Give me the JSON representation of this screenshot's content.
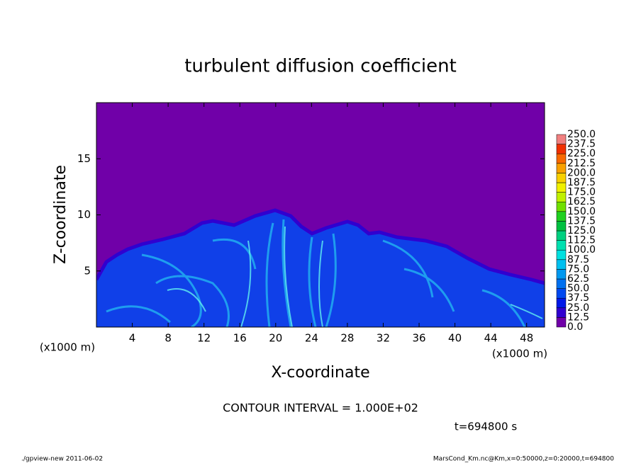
{
  "chart_data": {
    "type": "contour",
    "title": "turbulent diffusion coefficient",
    "xlabel": "X-coordinate",
    "ylabel": "Z-coordinate",
    "xunit": "(x1000 m)",
    "yunit": "(x1000 m)",
    "xlim": [
      0,
      50
    ],
    "ylim": [
      0,
      20
    ],
    "xticks": [
      4,
      8,
      12,
      16,
      20,
      24,
      28,
      32,
      36,
      40,
      44,
      48
    ],
    "yticks": [
      5,
      10,
      15
    ],
    "annotation": "CONTOUR INTERVAL = 1.000E+02",
    "time_label": "t=694800 s",
    "colorbar": {
      "levels": [
        {
          "value": 0,
          "label": "0.0"
        },
        {
          "value": 12.5,
          "label": "12.5"
        },
        {
          "value": 25,
          "label": "25.0"
        },
        {
          "value": 37.5,
          "label": "37.5"
        },
        {
          "value": 50,
          "label": "50.0"
        },
        {
          "value": 62.5,
          "label": "62.5"
        },
        {
          "value": 75,
          "label": "75.0"
        },
        {
          "value": 87.5,
          "label": "87.5"
        },
        {
          "value": 100,
          "label": "100.0"
        },
        {
          "value": 112.5,
          "label": "112.5"
        },
        {
          "value": 125,
          "label": "125.0"
        },
        {
          "value": 137.5,
          "label": "137.5"
        },
        {
          "value": 150,
          "label": "150.0"
        },
        {
          "value": 162.5,
          "label": "162.5"
        },
        {
          "value": 175,
          "label": "175.0"
        },
        {
          "value": 187.5,
          "label": "187.5"
        },
        {
          "value": 200,
          "label": "200.0"
        },
        {
          "value": 212.5,
          "label": "212.5"
        },
        {
          "value": 225,
          "label": "225.0"
        },
        {
          "value": 237.5,
          "label": "237.5"
        },
        {
          "value": 250,
          "label": "250.0"
        }
      ],
      "colors": [
        "#7000a8",
        "#3000d0",
        "#0018e8",
        "#0048f0",
        "#0070f0",
        "#0098f0",
        "#00c0f0",
        "#00e0e0",
        "#00e0b0",
        "#00d080",
        "#00c040",
        "#20d020",
        "#70e000",
        "#c0f000",
        "#f0f000",
        "#f8d000",
        "#f8a000",
        "#f86800",
        "#f03000",
        "#f08080"
      ]
    }
  },
  "footer": {
    "left": "./gpview-new  2011-06-02",
    "right": "MarsCond_Km.nc@Km,x=0:50000,z=0:20000,t=694800"
  }
}
